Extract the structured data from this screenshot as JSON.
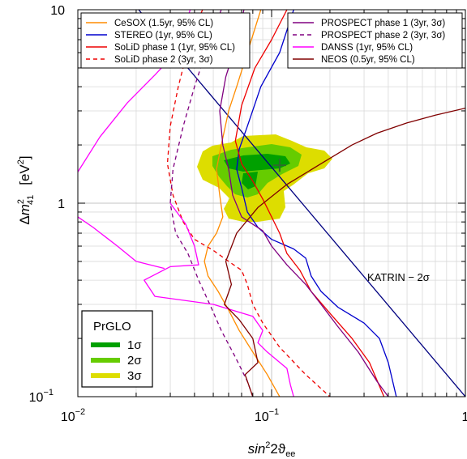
{
  "chart_data": {
    "type": "line",
    "xlabel": {
      "base": "sin",
      "sup": "2",
      "rest": "2",
      "theta": "ϑ",
      "sub": "ee"
    },
    "ylabel": {
      "delta": "Δ",
      "m": "m",
      "sup": "2",
      "sub": "41",
      "unit": "[eV",
      "unit_sup": "2",
      "unit_close": "]"
    },
    "x_scale": "log",
    "y_scale": "log",
    "xlim": [
      0.01,
      1
    ],
    "ylim": [
      0.1,
      10
    ],
    "grid": true,
    "x_ticks": [
      {
        "v": 0.01,
        "base": "10",
        "exp": "−2"
      },
      {
        "v": 0.1,
        "base": "10",
        "exp": "−1"
      },
      {
        "v": 1,
        "base": "1",
        "exp": ""
      }
    ],
    "y_ticks": [
      {
        "v": 0.1,
        "base": "10",
        "exp": "−1"
      },
      {
        "v": 1,
        "base": "1",
        "exp": ""
      },
      {
        "v": 10,
        "base": "10",
        "exp": ""
      }
    ],
    "legend_left": [
      {
        "label": "CeSOX (1.5yr, 95% CL)",
        "color": "#ff8c00",
        "dash": false
      },
      {
        "label": "STEREO (1yr, 95% CL)",
        "color": "#0000cd",
        "dash": false
      },
      {
        "label": "SoLiD phase 1 (1yr, 95% CL)",
        "color": "#ee0000",
        "dash": false
      },
      {
        "label": "SoLiD phase 2 (3yr, 3σ)",
        "color": "#ee0000",
        "dash": true
      }
    ],
    "legend_right": [
      {
        "label": "PROSPECT phase 1 (3yr, 3σ)",
        "color": "#800080",
        "dash": false
      },
      {
        "label": "PROSPECT phase 2 (3yr, 3σ)",
        "color": "#800080",
        "dash": true
      },
      {
        "label": "DANSS (1yr, 95% CL)",
        "color": "#ff00ff",
        "dash": false
      },
      {
        "label": "NEOS (0.5yr, 95% CL)",
        "color": "#800000",
        "dash": false
      }
    ],
    "prglo": {
      "title": "PrGLO",
      "levels": [
        {
          "label": "1σ",
          "color": "#00a000"
        },
        {
          "label": "2σ",
          "color": "#66cc00"
        },
        {
          "label": "3σ",
          "color": "#dddd00"
        }
      ],
      "best_fit": [
        0.11,
        1.57
      ]
    },
    "katrin": {
      "label": "KATRIN − 2σ",
      "color": "#000080",
      "points": [
        [
          0.0206,
          10
        ],
        [
          1,
          0.1
        ]
      ]
    },
    "series": [
      {
        "name": "CeSOX (1.5yr, 95% CL)",
        "color": "#ff8c00",
        "dash": false,
        "points": [
          [
            0.088,
            10
          ],
          [
            0.075,
            6
          ],
          [
            0.066,
            4
          ],
          [
            0.06,
            3
          ],
          [
            0.055,
            2
          ],
          [
            0.052,
            1.5
          ],
          [
            0.054,
            1.1
          ],
          [
            0.056,
            0.85
          ],
          [
            0.052,
            0.7
          ],
          [
            0.047,
            0.6
          ],
          [
            0.045,
            0.5
          ],
          [
            0.047,
            0.42
          ],
          [
            0.053,
            0.35
          ],
          [
            0.06,
            0.28
          ],
          [
            0.068,
            0.22
          ],
          [
            0.08,
            0.17
          ],
          [
            0.095,
            0.13
          ],
          [
            0.11,
            0.1
          ]
        ]
      },
      {
        "name": "STEREO (1yr, 95% CL)",
        "color": "#0000cd",
        "dash": false,
        "points": [
          [
            0.13,
            10
          ],
          [
            0.11,
            6
          ],
          [
            0.088,
            4
          ],
          [
            0.075,
            2.5
          ],
          [
            0.068,
            1.9
          ],
          [
            0.066,
            1.5
          ],
          [
            0.07,
            1.2
          ],
          [
            0.075,
            0.9
          ],
          [
            0.085,
            0.75
          ],
          [
            0.1,
            0.65
          ],
          [
            0.13,
            0.58
          ],
          [
            0.15,
            0.52
          ],
          [
            0.16,
            0.42
          ],
          [
            0.18,
            0.35
          ],
          [
            0.22,
            0.29
          ],
          [
            0.3,
            0.24
          ],
          [
            0.36,
            0.2
          ],
          [
            0.4,
            0.15
          ],
          [
            0.44,
            0.1
          ]
        ]
      },
      {
        "name": "SoLiD phase 1 (1yr, 95% CL)",
        "color": "#ee0000",
        "dash": false,
        "points": [
          [
            0.12,
            10
          ],
          [
            0.1,
            7
          ],
          [
            0.082,
            5
          ],
          [
            0.07,
            3.2
          ],
          [
            0.065,
            2.1
          ],
          [
            0.07,
            1.6
          ],
          [
            0.08,
            1.3
          ],
          [
            0.09,
            1.05
          ],
          [
            0.1,
            0.85
          ],
          [
            0.11,
            0.7
          ],
          [
            0.12,
            0.55
          ],
          [
            0.14,
            0.45
          ],
          [
            0.16,
            0.35
          ],
          [
            0.2,
            0.27
          ],
          [
            0.26,
            0.2
          ],
          [
            0.32,
            0.15
          ],
          [
            0.38,
            0.1
          ]
        ]
      },
      {
        "name": "SoLiD phase 2 (3yr, 3σ)",
        "color": "#ee0000",
        "dash": true,
        "points": [
          [
            0.044,
            10
          ],
          [
            0.038,
            7
          ],
          [
            0.033,
            4
          ],
          [
            0.03,
            2.5
          ],
          [
            0.029,
            1.6
          ],
          [
            0.031,
            1.1
          ],
          [
            0.035,
            0.8
          ],
          [
            0.04,
            0.65
          ],
          [
            0.05,
            0.57
          ],
          [
            0.06,
            0.5
          ],
          [
            0.07,
            0.45
          ],
          [
            0.075,
            0.38
          ],
          [
            0.08,
            0.3
          ],
          [
            0.09,
            0.24
          ],
          [
            0.11,
            0.18
          ],
          [
            0.15,
            0.13
          ],
          [
            0.2,
            0.1
          ]
        ]
      },
      {
        "name": "PROSPECT phase 1 (3yr, 3σ)",
        "color": "#800080",
        "dash": false,
        "points": [
          [
            0.072,
            10
          ],
          [
            0.065,
            6.5
          ],
          [
            0.058,
            4.5
          ],
          [
            0.054,
            3
          ],
          [
            0.056,
            2
          ],
          [
            0.06,
            1.5
          ],
          [
            0.063,
            1.1
          ],
          [
            0.07,
            0.85
          ],
          [
            0.09,
            0.72
          ],
          [
            0.1,
            0.6
          ],
          [
            0.12,
            0.48
          ],
          [
            0.15,
            0.38
          ],
          [
            0.18,
            0.3
          ],
          [
            0.22,
            0.23
          ],
          [
            0.28,
            0.17
          ],
          [
            0.35,
            0.12
          ],
          [
            0.4,
            0.1
          ]
        ]
      },
      {
        "name": "PROSPECT phase 2 (3yr, 3σ)",
        "color": "#800080",
        "dash": true,
        "points": [
          [
            0.055,
            10
          ],
          [
            0.048,
            7
          ],
          [
            0.04,
            4
          ],
          [
            0.035,
            2.5
          ],
          [
            0.031,
            1.5
          ],
          [
            0.03,
            1
          ],
          [
            0.032,
            0.7
          ],
          [
            0.037,
            0.55
          ],
          [
            0.042,
            0.4
          ],
          [
            0.048,
            0.3
          ],
          [
            0.055,
            0.22
          ],
          [
            0.065,
            0.16
          ],
          [
            0.075,
            0.12
          ],
          [
            0.08,
            0.1
          ]
        ]
      },
      {
        "name": "DANSS (1yr, 95% CL)",
        "color": "#ff00ff",
        "dash": false,
        "points": [
          [
            0.01,
            1.45
          ],
          [
            0.013,
            2.2
          ],
          [
            0.018,
            3.3
          ],
          [
            0.025,
            4.6
          ],
          [
            0.032,
            6
          ],
          [
            0.038,
            10
          ],
          [
            0.03,
            1
          ],
          [
            0.036,
            0.78
          ],
          [
            0.04,
            0.6
          ],
          [
            0.042,
            0.48
          ],
          [
            0.03,
            0.47
          ],
          [
            0.022,
            0.4
          ],
          [
            0.025,
            0.33
          ],
          [
            0.05,
            0.3
          ],
          [
            0.08,
            0.26
          ],
          [
            0.09,
            0.22
          ],
          [
            0.085,
            0.19
          ],
          [
            0.095,
            0.17
          ],
          [
            0.12,
            0.14
          ],
          [
            0.125,
            0.115
          ],
          [
            0.13,
            0.1
          ],
          [
            0.01,
            0.85
          ],
          [
            0.012,
            0.75
          ],
          [
            0.016,
            0.6
          ],
          [
            0.02,
            0.5
          ],
          [
            0.028,
            0.46
          ]
        ]
      },
      {
        "name": "NEOS (0.5yr, 95% CL)",
        "color": "#800000",
        "dash": false,
        "points": [
          [
            0.08,
            0.1
          ],
          [
            0.073,
            0.13
          ],
          [
            0.085,
            0.15
          ],
          [
            0.08,
            0.2
          ],
          [
            0.068,
            0.25
          ],
          [
            0.057,
            0.3
          ],
          [
            0.062,
            0.38
          ],
          [
            0.058,
            0.5
          ],
          [
            0.066,
            0.7
          ],
          [
            0.085,
            0.95
          ],
          [
            0.12,
            1.25
          ],
          [
            0.18,
            1.6
          ],
          [
            0.26,
            2
          ],
          [
            0.35,
            2.3
          ],
          [
            0.5,
            2.6
          ],
          [
            0.7,
            2.85
          ],
          [
            1,
            3.1
          ]
        ]
      }
    ]
  }
}
